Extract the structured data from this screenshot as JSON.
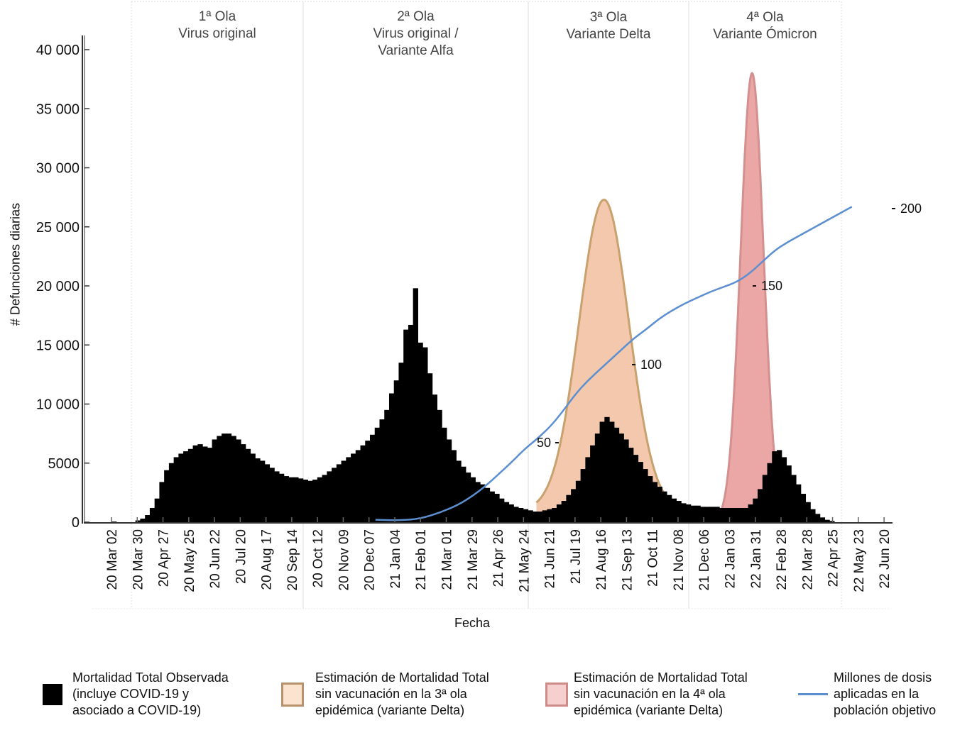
{
  "chart_data": {
    "type": "bar",
    "title": "",
    "xlabel": "Fecha",
    "ylabel": "# Defunciones diarias",
    "ylim": [
      0,
      40000
    ],
    "yticks": [
      0,
      5000,
      10000,
      15000,
      20000,
      25000,
      30000,
      35000,
      40000
    ],
    "ytick_labels": [
      "0",
      "5000",
      "10 000",
      "15 000",
      "20 000",
      "25 000",
      "30 000",
      "35 000",
      "40 000"
    ],
    "x_tick_labels": [
      "20 Mar 02",
      "20 Mar 30",
      "20 Apr 27",
      "20 May 25",
      "20 Jun 22",
      "20 Jul 20",
      "20 Aug 17",
      "20 Sep 14",
      "20 Oct 12",
      "20 Nov 09",
      "20 Dec 07",
      "21 Jan 04",
      "21 Feb 01",
      "21 Mar 01",
      "21 Mar 29",
      "21 Apr 26",
      "21 May 24",
      "21 Jun 21",
      "21 Jul 19",
      "21 Aug 16",
      "21 Sep 13",
      "21 Oct 11",
      "21 Nov 08",
      "21 Dec 06",
      "22 Jan 03",
      "22 Jan 31",
      "22 Feb 28",
      "22 Mar 28",
      "22 Apr 25",
      "22 May 23",
      "22 Jun 20"
    ],
    "x_unit": "weeks since 20 Mar 02 (tick every 4 weeks)",
    "waves": [
      {
        "title": "1ª Ola",
        "subtitle": "Virus original",
        "start_week": 4,
        "end_week": 30.5
      },
      {
        "title": "2ª Ola",
        "subtitle": "Virus original /\nVariante Alfa",
        "start_week": 30.5,
        "end_week": 65.5
      },
      {
        "title": "3ª Ola",
        "subtitle": "Variante Delta",
        "start_week": 65.5,
        "end_week": 90.5
      },
      {
        "title": "4ª Ola",
        "subtitle": "Variante Ómicron",
        "start_week": 90.5,
        "end_week": 114
      }
    ],
    "series": [
      {
        "name": "Mortalidad Total Observada (incluye COVID-19 y asociado a COVID-19)",
        "kind": "bars",
        "color": "#000000",
        "start_week": 0,
        "bar_width_weeks": 1,
        "values": [
          50,
          0,
          0,
          0,
          0,
          150,
          300,
          600,
          1200,
          2000,
          3400,
          4400,
          5000,
          5500,
          5800,
          6000,
          6200,
          6500,
          6600,
          6400,
          6300,
          7000,
          7300,
          7500,
          7500,
          7300,
          7000,
          6600,
          6200,
          5800,
          5400,
          5200,
          4900,
          4600,
          4300,
          4100,
          3900,
          3800,
          3800,
          3700,
          3600,
          3500,
          3600,
          3800,
          4000,
          4300,
          4600,
          4900,
          5200,
          5500,
          5800,
          6100,
          6500,
          6900,
          7400,
          8000,
          8700,
          9500,
          10900,
          12000,
          13500,
          16300,
          16700,
          19800,
          15200,
          14800,
          12600,
          10800,
          9500,
          8000,
          7000,
          6100,
          5200,
          4700,
          4200,
          3800,
          3400,
          3200,
          2900,
          2600,
          2400,
          2000,
          1700,
          1500,
          1300,
          1200,
          1100,
          1000,
          900,
          900,
          1000,
          1100,
          1200,
          1500,
          1800,
          2300,
          2800,
          3500,
          4500,
          5500,
          6500,
          7500,
          8500,
          8900,
          8500,
          8000,
          7500,
          7000,
          6300,
          5700,
          5100,
          4500,
          3900,
          3400,
          3000,
          2600,
          2300,
          2000,
          1800,
          1600,
          1500,
          1400,
          1400,
          1300,
          1300,
          1300,
          1300,
          1200,
          1200,
          1200,
          1200,
          1200,
          1200,
          1500,
          2000,
          2800,
          4000,
          5000,
          6000,
          6100,
          5500,
          4800,
          4000,
          3200,
          2400,
          1700,
          1100,
          700,
          400,
          200,
          100,
          0
        ]
      },
      {
        "name": "Estimación de Mortalidad Total sin vacunación en la 3ª ola epidémica (variante Delta)",
        "kind": "bell",
        "fill": "#f3c8ac",
        "stroke": "#c9a16f",
        "peak_week": 76.5,
        "peak_value": 27300,
        "start_week": 66,
        "end_week": 90,
        "baseline": 1000
      },
      {
        "name": "Estimación de Mortalidad Total sin vacunación en la 4ª ola epidémica (variante Delta)",
        "kind": "bell",
        "fill": "#eba6a6",
        "stroke": "#d48f8f",
        "peak_week": 99.5,
        "peak_value": 38000,
        "start_week": 94,
        "end_week": 105,
        "baseline": 0
      },
      {
        "name": "Millones de dosis aplicadas en la población objetivo",
        "kind": "line",
        "color": "#5b8fd0",
        "secondary_axis": true,
        "secondary_ticks": [
          50,
          100,
          150,
          200
        ],
        "secondary_tick_label_positions_deaths": {
          "50": 6800,
          "100": 13400,
          "150": 20000,
          "200": 26700
        },
        "points_week_deaths": [
          [
            41,
            200
          ],
          [
            45,
            150
          ],
          [
            48,
            300
          ],
          [
            51,
            800
          ],
          [
            54,
            1500
          ],
          [
            56,
            2200
          ],
          [
            58,
            3000
          ],
          [
            60,
            4000
          ],
          [
            62,
            5000
          ],
          [
            64,
            6100
          ],
          [
            66,
            7000
          ],
          [
            68,
            8000
          ],
          [
            70,
            9300
          ],
          [
            72,
            10800
          ],
          [
            74,
            12000
          ],
          [
            76,
            13000
          ],
          [
            77,
            13500
          ],
          [
            79,
            14500
          ],
          [
            81,
            15500
          ],
          [
            83,
            16300
          ],
          [
            85,
            17200
          ],
          [
            87,
            17900
          ],
          [
            89,
            18500
          ],
          [
            91,
            19000
          ],
          [
            93,
            19500
          ],
          [
            95,
            19900
          ],
          [
            97,
            20300
          ],
          [
            99,
            21000
          ],
          [
            101,
            22000
          ],
          [
            103,
            23000
          ],
          [
            105,
            23700
          ],
          [
            107,
            24300
          ],
          [
            109,
            24900
          ],
          [
            111,
            25500
          ],
          [
            113,
            26100
          ],
          [
            115,
            26700
          ]
        ]
      }
    ],
    "legend_placement": "bottom",
    "grid": false
  },
  "legend": [
    {
      "label": "Mortalidad Total Observada\n(incluye COVID-19 y\nasociado a COVID-19)",
      "swatch": "black-square"
    },
    {
      "label": "Estimación de Mortalidad Total\nsin vacunación en la 3ª ola\nepidémica (variante Delta)",
      "swatch": "peach-square"
    },
    {
      "label": "Estimación de Mortalidad Total\nsin vacunación en la 4ª ola\nepidémica (variante Delta)",
      "swatch": "pink-square"
    },
    {
      "label": "Millones de dosis\naplicadas en la\npoblación objetivo",
      "swatch": "blue-line"
    }
  ],
  "colors": {
    "observed": "#000000",
    "delta_fill": "#f3c8ac",
    "delta_stroke": "#c9a16f",
    "omicron_fill": "#eba6a6",
    "omicron_stroke": "#d48f8f",
    "doses_line": "#5b8fd0",
    "wave_title": "#444444",
    "divider": "#dddddd"
  }
}
